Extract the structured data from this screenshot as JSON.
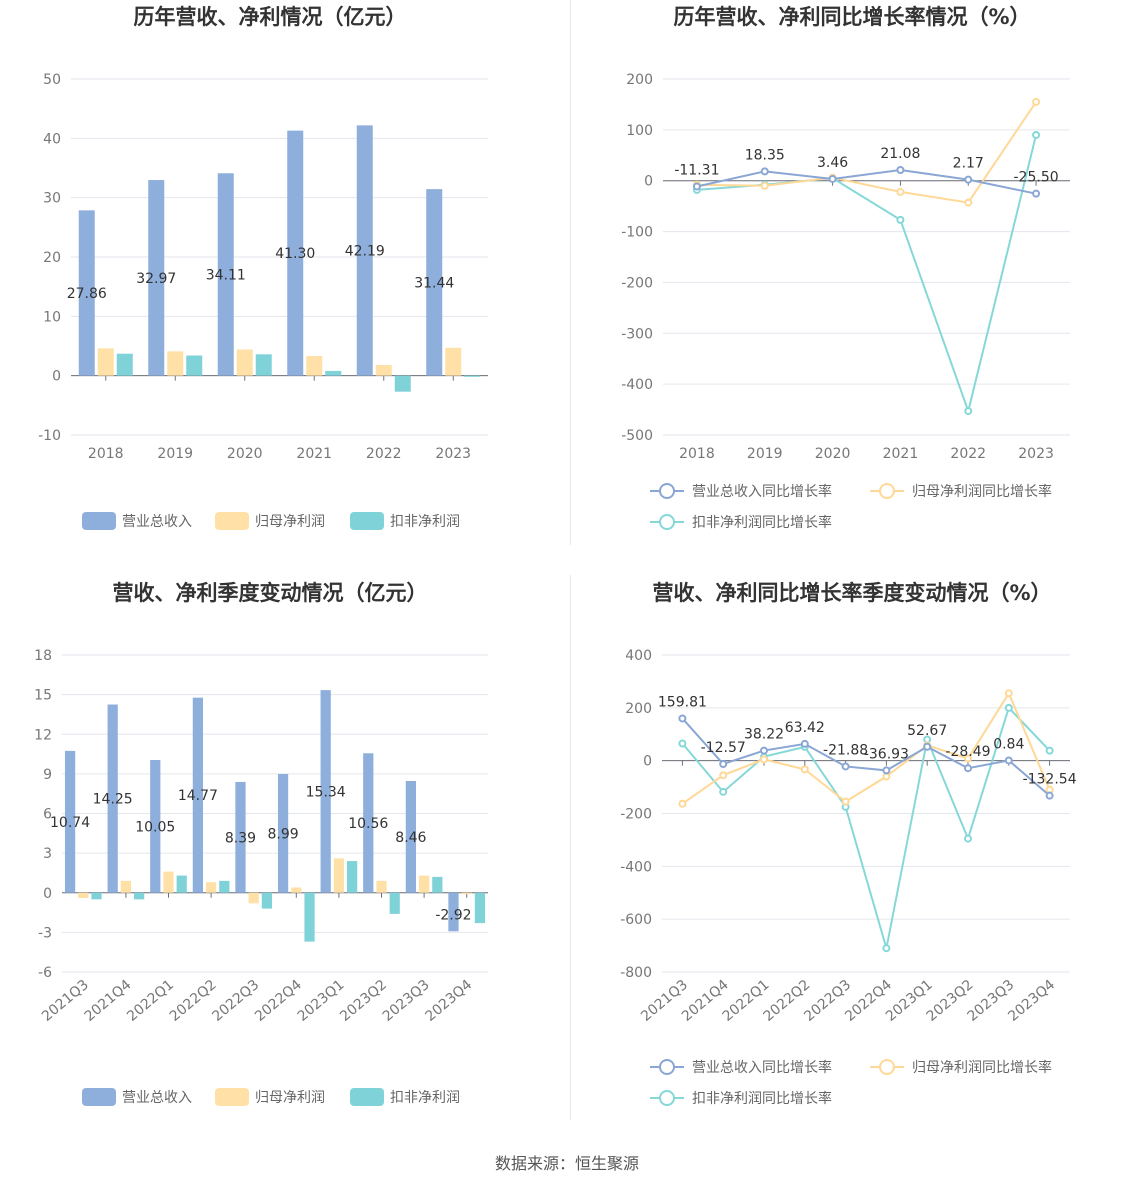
{
  "colors": {
    "revenue": "#8eaedc",
    "net": "#ffe0a6",
    "deducted": "#7fd3d8",
    "grid": "#e3e6ee",
    "axis": "#6e7079"
  },
  "source": "数据来源：恒生聚源",
  "chart_data": [
    {
      "type": "bar",
      "title": "历年营收、净利情况（亿元）",
      "categories": [
        "2018",
        "2019",
        "2020",
        "2021",
        "2022",
        "2023"
      ],
      "series": [
        {
          "name": "营业总收入",
          "values": [
            27.86,
            32.97,
            34.11,
            41.3,
            42.19,
            31.44
          ],
          "labels": [
            "27.86",
            "32.97",
            "34.11",
            "41.30",
            "42.19",
            "31.44"
          ]
        },
        {
          "name": "归母净利润",
          "values": [
            4.6,
            4.1,
            4.4,
            3.3,
            1.8,
            4.7
          ]
        },
        {
          "name": "扣非净利润",
          "values": [
            3.7,
            3.4,
            3.6,
            0.8,
            -2.7,
            -0.2
          ]
        }
      ],
      "ylim": [
        -10,
        50
      ],
      "yticks": [
        "-10",
        "0",
        "10",
        "20",
        "30",
        "40",
        "50"
      ],
      "grid": true,
      "legend": "bottom"
    },
    {
      "type": "line",
      "title": "历年营收、净利同比增长率情况（%）",
      "categories": [
        "2018",
        "2019",
        "2020",
        "2021",
        "2022",
        "2023"
      ],
      "series": [
        {
          "name": "营业总收入同比增长率",
          "values": [
            -11.31,
            18.35,
            3.46,
            21.08,
            2.17,
            -25.5
          ],
          "labels": [
            "-11.31",
            "18.35",
            "3.46",
            "21.08",
            "2.17",
            "-25.50"
          ]
        },
        {
          "name": "归母净利润同比增长率",
          "values": [
            -8,
            -10,
            6,
            -22,
            -43,
            155
          ]
        },
        {
          "name": "扣非净利润同比增长率",
          "values": [
            -18,
            -8,
            5,
            -77,
            -453,
            90
          ]
        }
      ],
      "ylim": [
        -500,
        200
      ],
      "yticks": [
        "-500",
        "-400",
        "-300",
        "-200",
        "-100",
        "0",
        "100",
        "200"
      ],
      "grid": true,
      "legend": "bottom"
    },
    {
      "type": "bar",
      "title": "营收、净利季度变动情况（亿元）",
      "categories": [
        "2021Q3",
        "2021Q4",
        "2022Q1",
        "2022Q2",
        "2022Q3",
        "2022Q4",
        "2023Q1",
        "2023Q2",
        "2023Q3",
        "2023Q4"
      ],
      "series": [
        {
          "name": "营业总收入",
          "values": [
            10.74,
            14.25,
            10.05,
            14.77,
            8.39,
            8.99,
            15.34,
            10.56,
            8.46,
            -2.92
          ],
          "labels": [
            "10.74",
            "14.25",
            "10.05",
            "14.77",
            "8.39",
            "8.99",
            "15.34",
            "10.56",
            "8.46",
            "-2.92"
          ]
        },
        {
          "name": "归母净利润",
          "values": [
            -0.4,
            0.9,
            1.6,
            0.8,
            -0.8,
            0.4,
            2.6,
            0.9,
            1.3,
            -0.1
          ]
        },
        {
          "name": "扣非净利润",
          "values": [
            -0.5,
            -0.5,
            1.3,
            0.9,
            -1.2,
            -3.7,
            2.4,
            -1.6,
            1.2,
            -2.3
          ]
        }
      ],
      "ylim": [
        -6,
        18
      ],
      "yticks": [
        "-6",
        "-3",
        "0",
        "3",
        "6",
        "9",
        "12",
        "15",
        "18"
      ],
      "grid": true,
      "legend": "bottom"
    },
    {
      "type": "line",
      "title": "营收、净利同比增长率季度变动情况（%）",
      "categories": [
        "2021Q3",
        "2021Q4",
        "2022Q1",
        "2022Q2",
        "2022Q3",
        "2022Q4",
        "2023Q1",
        "2023Q2",
        "2023Q3",
        "2023Q4"
      ],
      "series": [
        {
          "name": "营业总收入同比增长率",
          "values": [
            159.81,
            -12.57,
            38.22,
            63.42,
            -21.88,
            -36.93,
            52.67,
            -28.49,
            0.84,
            -132.54
          ],
          "labels": [
            "159.81",
            "-12.57",
            "38.22",
            "63.42",
            "-21.88",
            "-36.93",
            "52.67",
            "-28.49",
            "0.84",
            "-132.54"
          ]
        },
        {
          "name": "归母净利润同比增长率",
          "values": [
            -163,
            -55,
            5,
            -33,
            -155,
            -60,
            58,
            8,
            255,
            -110
          ]
        },
        {
          "name": "扣非净利润同比增长率",
          "values": [
            65,
            -118,
            15,
            52,
            -175,
            -710,
            80,
            -295,
            200,
            38
          ]
        }
      ],
      "ylim": [
        -800,
        400
      ],
      "yticks": [
        "-800",
        "-600",
        "-400",
        "-200",
        "0",
        "200",
        "400"
      ],
      "grid": true,
      "legend": "bottom"
    }
  ]
}
